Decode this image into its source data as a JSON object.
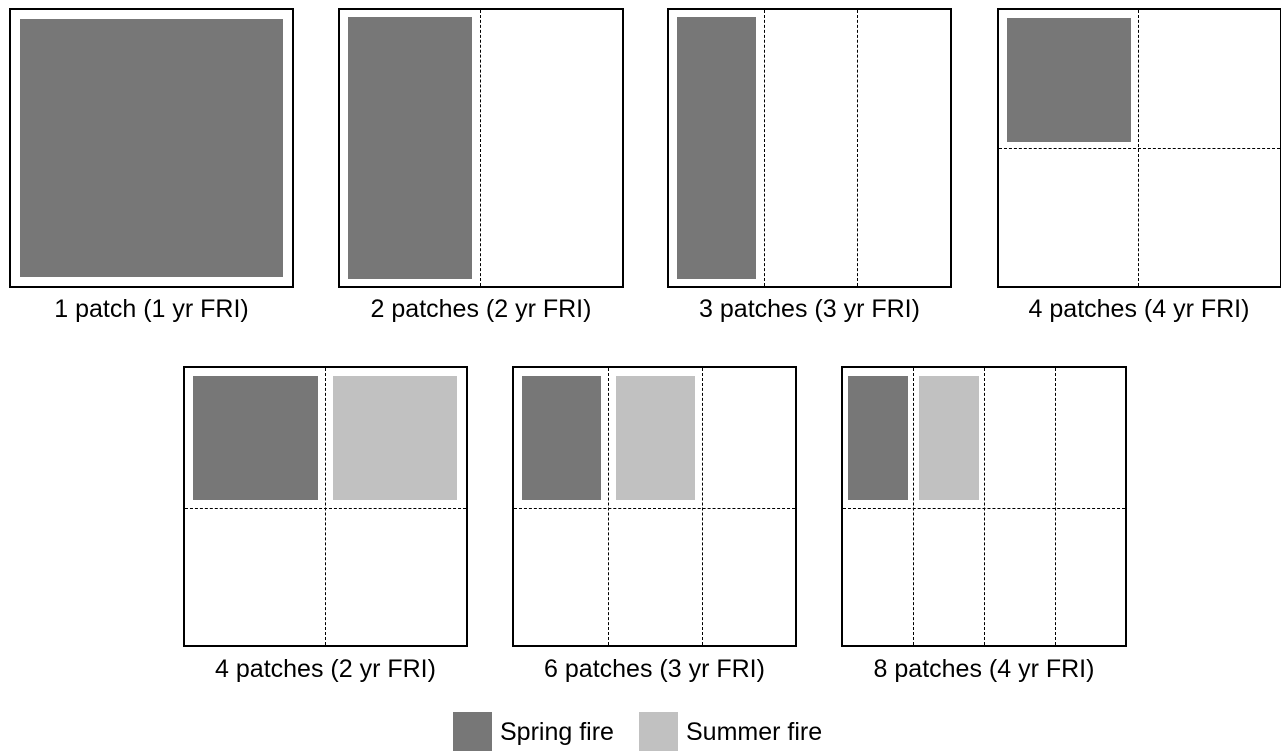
{
  "panels": [
    {
      "caption": "1 patch (1 yr FRI)",
      "patches": 1,
      "fri_years": 1
    },
    {
      "caption": "2 patches (2 yr FRI)",
      "patches": 2,
      "fri_years": 2
    },
    {
      "caption": "3 patches (3 yr FRI)",
      "patches": 3,
      "fri_years": 3
    },
    {
      "caption": "4 patches (4 yr FRI)",
      "patches": 4,
      "fri_years": 4
    },
    {
      "caption": "4 patches (2 yr FRI)",
      "patches": 4,
      "fri_years": 2
    },
    {
      "caption": "6 patches (3 yr FRI)",
      "patches": 6,
      "fri_years": 3
    },
    {
      "caption": "8 patches (4 yr FRI)",
      "patches": 8,
      "fri_years": 4
    }
  ],
  "legend": {
    "spring_label": "Spring fire",
    "summer_label": "Summer fire",
    "spring_color": "#777777",
    "summer_color": "#c1c1c1"
  }
}
